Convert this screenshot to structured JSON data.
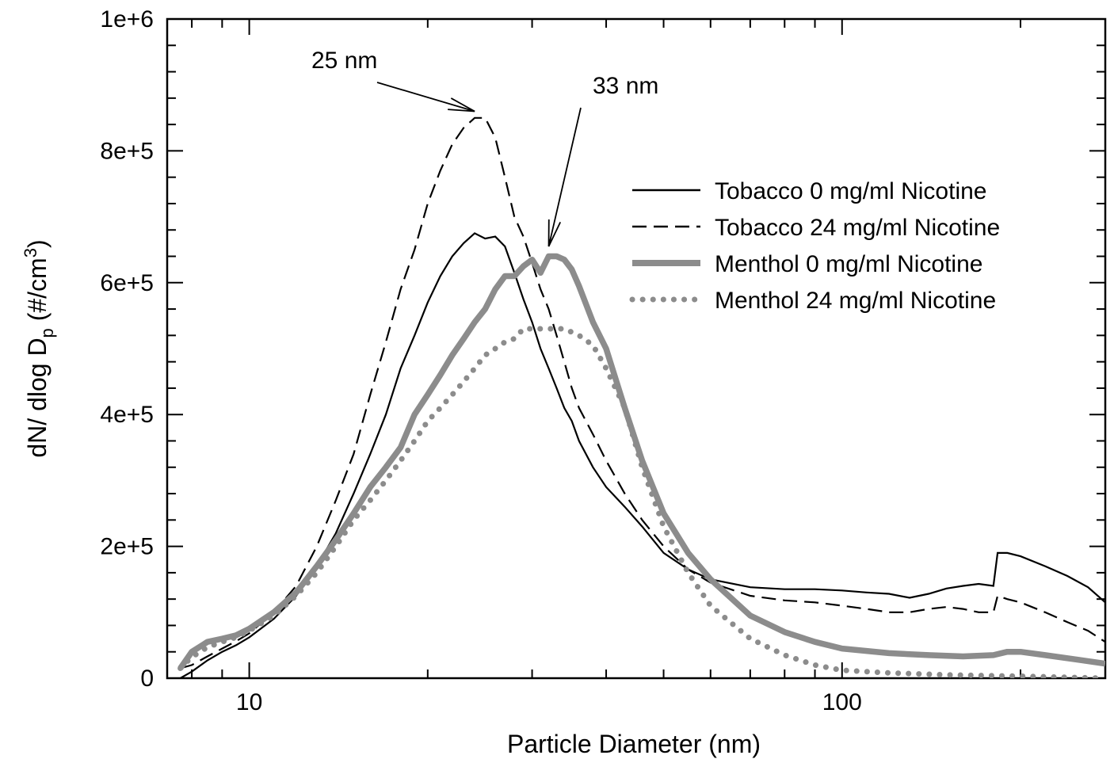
{
  "chart_data": {
    "type": "line",
    "title": "",
    "xlabel": "Particle Diameter (nm)",
    "ylabel_main": "dN/ dlog D",
    "ylabel_sub": "p",
    "ylabel_unit_open": " (#/cm",
    "ylabel_unit_sup": "3",
    "ylabel_unit_close": ")",
    "xscale": "log",
    "xlim": [
      7.27,
      278
    ],
    "ylim": [
      0,
      1000000
    ],
    "x_ticks": [
      {
        "value": 10,
        "label": "10"
      },
      {
        "value": 100,
        "label": "100"
      }
    ],
    "y_ticks": [
      {
        "value": 0,
        "label": "0"
      },
      {
        "value": 200000,
        "label": "2e+5"
      },
      {
        "value": 400000,
        "label": "4e+5"
      },
      {
        "value": 600000,
        "label": "6e+5"
      },
      {
        "value": 800000,
        "label": "8e+5"
      },
      {
        "value": 1000000,
        "label": "1e+6"
      }
    ],
    "legend_position": "right",
    "grid": false,
    "series": [
      {
        "name": "Tobacco 0 mg/ml Nicotine",
        "color": "#000000",
        "style": "solid",
        "points": [
          [
            7.65,
            0
          ],
          [
            8,
            10000
          ],
          [
            8.5,
            27000
          ],
          [
            9,
            40000
          ],
          [
            9.5,
            50000
          ],
          [
            10,
            62000
          ],
          [
            11,
            90000
          ],
          [
            12,
            125000
          ],
          [
            13,
            170000
          ],
          [
            14,
            220000
          ],
          [
            15,
            280000
          ],
          [
            16,
            340000
          ],
          [
            17,
            400000
          ],
          [
            18,
            470000
          ],
          [
            19,
            520000
          ],
          [
            20,
            570000
          ],
          [
            21,
            610000
          ],
          [
            22,
            640000
          ],
          [
            23,
            660000
          ],
          [
            24,
            675000
          ],
          [
            25,
            667000
          ],
          [
            26,
            670000
          ],
          [
            27,
            655000
          ],
          [
            28,
            615000
          ],
          [
            29,
            575000
          ],
          [
            30,
            540000
          ],
          [
            31,
            500000
          ],
          [
            32,
            470000
          ],
          [
            33,
            440000
          ],
          [
            34,
            410000
          ],
          [
            35,
            390000
          ],
          [
            36,
            360000
          ],
          [
            38,
            320000
          ],
          [
            40,
            290000
          ],
          [
            43,
            260000
          ],
          [
            46,
            230000
          ],
          [
            50,
            190000
          ],
          [
            55,
            165000
          ],
          [
            60,
            150000
          ],
          [
            70,
            138000
          ],
          [
            80,
            135000
          ],
          [
            90,
            135000
          ],
          [
            100,
            133000
          ],
          [
            110,
            130000
          ],
          [
            120,
            128000
          ],
          [
            130,
            122000
          ],
          [
            140,
            128000
          ],
          [
            150,
            136000
          ],
          [
            160,
            140000
          ],
          [
            170,
            143000
          ],
          [
            180,
            140000
          ],
          [
            183,
            190000
          ],
          [
            190,
            190000
          ],
          [
            200,
            185000
          ],
          [
            220,
            170000
          ],
          [
            240,
            155000
          ],
          [
            260,
            138000
          ],
          [
            278,
            115000
          ]
        ]
      },
      {
        "name": "Tobacco 24 mg/ml Nicotine",
        "color": "#000000",
        "style": "dashed",
        "points": [
          [
            7.65,
            15000
          ],
          [
            8,
            20000
          ],
          [
            8.5,
            33000
          ],
          [
            9,
            45000
          ],
          [
            9.5,
            56000
          ],
          [
            10,
            68000
          ],
          [
            11,
            100000
          ],
          [
            12,
            140000
          ],
          [
            13,
            200000
          ],
          [
            14,
            270000
          ],
          [
            15,
            340000
          ],
          [
            16,
            430000
          ],
          [
            17,
            510000
          ],
          [
            18,
            590000
          ],
          [
            19,
            650000
          ],
          [
            20,
            720000
          ],
          [
            21,
            770000
          ],
          [
            22,
            810000
          ],
          [
            23,
            835000
          ],
          [
            24,
            850000
          ],
          [
            25,
            850000
          ],
          [
            26,
            820000
          ],
          [
            27,
            760000
          ],
          [
            28,
            700000
          ],
          [
            29,
            670000
          ],
          [
            30,
            630000
          ],
          [
            31,
            590000
          ],
          [
            32,
            560000
          ],
          [
            33,
            520000
          ],
          [
            34,
            480000
          ],
          [
            35,
            440000
          ],
          [
            36,
            410000
          ],
          [
            38,
            370000
          ],
          [
            40,
            330000
          ],
          [
            43,
            280000
          ],
          [
            46,
            240000
          ],
          [
            50,
            200000
          ],
          [
            55,
            165000
          ],
          [
            60,
            145000
          ],
          [
            70,
            125000
          ],
          [
            80,
            118000
          ],
          [
            90,
            115000
          ],
          [
            100,
            110000
          ],
          [
            110,
            105000
          ],
          [
            120,
            100000
          ],
          [
            130,
            100000
          ],
          [
            140,
            105000
          ],
          [
            150,
            108000
          ],
          [
            160,
            105000
          ],
          [
            170,
            100000
          ],
          [
            180,
            100000
          ],
          [
            183,
            125000
          ],
          [
            190,
            120000
          ],
          [
            200,
            115000
          ],
          [
            220,
            100000
          ],
          [
            240,
            85000
          ],
          [
            260,
            72000
          ],
          [
            278,
            55000
          ]
        ]
      },
      {
        "name": "Menthol 0 mg/ml Nicotine",
        "color": "#8c8c8c",
        "style": "thick",
        "points": [
          [
            7.65,
            15000
          ],
          [
            8,
            40000
          ],
          [
            8.5,
            55000
          ],
          [
            9,
            60000
          ],
          [
            9.5,
            65000
          ],
          [
            10,
            75000
          ],
          [
            11,
            100000
          ],
          [
            12,
            130000
          ],
          [
            13,
            170000
          ],
          [
            14,
            210000
          ],
          [
            15,
            250000
          ],
          [
            16,
            290000
          ],
          [
            17,
            320000
          ],
          [
            18,
            350000
          ],
          [
            19,
            400000
          ],
          [
            20,
            430000
          ],
          [
            21,
            460000
          ],
          [
            22,
            490000
          ],
          [
            23,
            515000
          ],
          [
            24,
            540000
          ],
          [
            25,
            560000
          ],
          [
            26,
            590000
          ],
          [
            27,
            610000
          ],
          [
            28,
            610000
          ],
          [
            29,
            625000
          ],
          [
            30,
            635000
          ],
          [
            31,
            615000
          ],
          [
            32,
            640000
          ],
          [
            33,
            640000
          ],
          [
            34,
            635000
          ],
          [
            35,
            620000
          ],
          [
            36,
            595000
          ],
          [
            38,
            540000
          ],
          [
            40,
            500000
          ],
          [
            43,
            410000
          ],
          [
            46,
            330000
          ],
          [
            50,
            250000
          ],
          [
            55,
            190000
          ],
          [
            60,
            150000
          ],
          [
            70,
            95000
          ],
          [
            80,
            70000
          ],
          [
            90,
            55000
          ],
          [
            100,
            45000
          ],
          [
            120,
            38000
          ],
          [
            140,
            35000
          ],
          [
            160,
            33000
          ],
          [
            180,
            35000
          ],
          [
            190,
            40000
          ],
          [
            200,
            40000
          ],
          [
            220,
            35000
          ],
          [
            250,
            28000
          ],
          [
            278,
            22000
          ]
        ]
      },
      {
        "name": "Menthol 24 mg/ml Nicotine",
        "color": "#8c8c8c",
        "style": "dotted",
        "points": [
          [
            7.65,
            15000
          ],
          [
            8,
            32000
          ],
          [
            8.5,
            47000
          ],
          [
            9,
            55000
          ],
          [
            9.5,
            62000
          ],
          [
            10,
            72000
          ],
          [
            11,
            95000
          ],
          [
            12,
            125000
          ],
          [
            13,
            160000
          ],
          [
            14,
            200000
          ],
          [
            15,
            240000
          ],
          [
            16,
            270000
          ],
          [
            17,
            300000
          ],
          [
            18,
            330000
          ],
          [
            19,
            360000
          ],
          [
            20,
            390000
          ],
          [
            21,
            410000
          ],
          [
            22,
            430000
          ],
          [
            23,
            450000
          ],
          [
            24,
            470000
          ],
          [
            25,
            490000
          ],
          [
            26,
            500000
          ],
          [
            27,
            510000
          ],
          [
            28,
            515000
          ],
          [
            29,
            530000
          ],
          [
            30,
            530000
          ],
          [
            32,
            530000
          ],
          [
            34,
            530000
          ],
          [
            36,
            520000
          ],
          [
            38,
            505000
          ],
          [
            40,
            470000
          ],
          [
            43,
            410000
          ],
          [
            46,
            320000
          ],
          [
            50,
            230000
          ],
          [
            55,
            160000
          ],
          [
            60,
            110000
          ],
          [
            70,
            60000
          ],
          [
            80,
            35000
          ],
          [
            90,
            20000
          ],
          [
            100,
            12000
          ],
          [
            120,
            8000
          ],
          [
            150,
            5000
          ],
          [
            200,
            3000
          ],
          [
            278,
            0
          ]
        ]
      }
    ],
    "annotations": [
      {
        "text": "25 nm",
        "tip_x": 24,
        "tip_y": 860000
      },
      {
        "text": "33 nm",
        "tip_x": 32,
        "tip_y": 655000
      }
    ]
  }
}
